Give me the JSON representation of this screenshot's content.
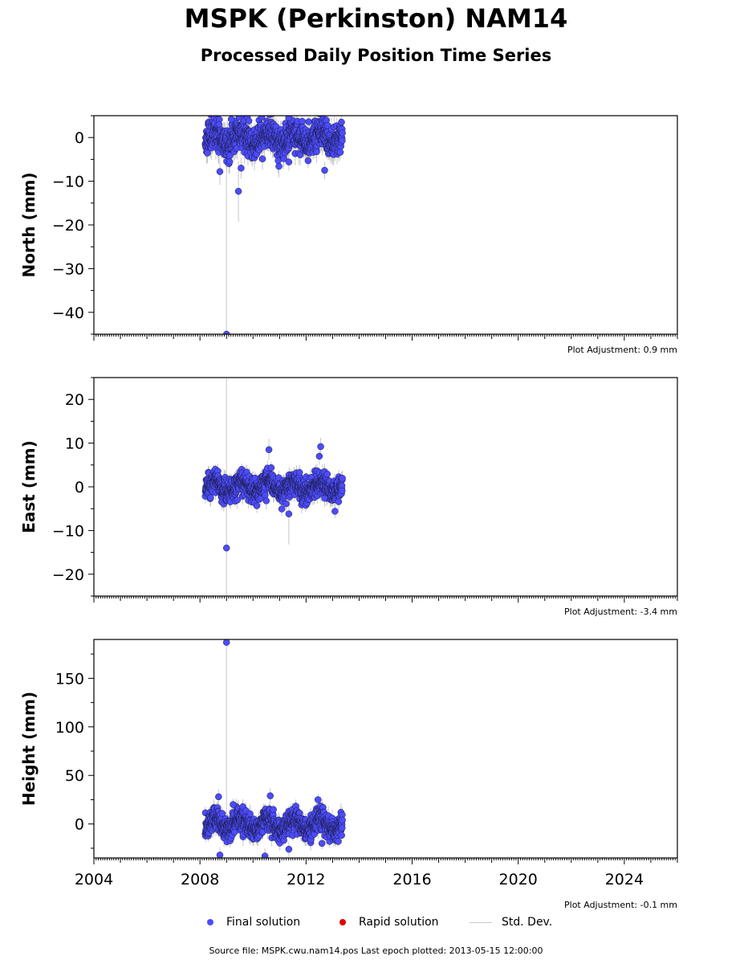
{
  "title": "MSPK (Perkinston) NAM14",
  "subtitle": "Processed Daily Position Time Series",
  "legend": {
    "final_label": "Final solution",
    "rapid_label": "Rapid solution",
    "stddev_label": "Std. Dev.",
    "final_color": "#4c4cff",
    "rapid_color": "#e00000",
    "stddev_color": "#c8c8c8"
  },
  "footer": "Source file: MSPK.cwu.nam14.pos  Last epoch plotted: 2013-05-15 12:00:00",
  "chart_data": [
    {
      "type": "scatter",
      "component": "north",
      "ylabel": "North (mm)",
      "adjustment": "Plot Adjustment: 0.9 mm",
      "xlim": [
        2004.0,
        2026.0
      ],
      "ylim": [
        -45,
        5
      ],
      "yticks": [
        0,
        -10,
        -20,
        -30,
        -40
      ],
      "xticks": [
        2004,
        2008,
        2012,
        2016,
        2020,
        2024
      ],
      "show_xtick_labels": false,
      "data_range": [
        2008.2,
        2013.37
      ],
      "noise_sd": 1.8,
      "seasonal_amp": 1.5,
      "seed": 11,
      "outliers": [
        {
          "x": 2009.0,
          "y": -45.0,
          "err": 44.0
        },
        {
          "x": 2009.45,
          "y": -12.3,
          "err": 7.0
        },
        {
          "x": 2008.75,
          "y": -7.8,
          "err": 3.0
        },
        {
          "x": 2009.55,
          "y": -7.0,
          "err": 2.5
        },
        {
          "x": 2008.72,
          "y": 3.0,
          "err": 2.0
        },
        {
          "x": 2009.18,
          "y": 4.2,
          "err": 2.0
        },
        {
          "x": 2011.35,
          "y": -5.6,
          "err": 2.0
        },
        {
          "x": 2011.35,
          "y": 4.5,
          "err": 2.0
        },
        {
          "x": 2012.7,
          "y": -7.5,
          "err": 2.0
        }
      ]
    },
    {
      "type": "scatter",
      "component": "east",
      "ylabel": "East (mm)",
      "adjustment": "Plot Adjustment: -3.4 mm",
      "xlim": [
        2004.0,
        2026.0
      ],
      "ylim": [
        -25,
        25
      ],
      "yticks": [
        20,
        10,
        0,
        -10,
        -20
      ],
      "xticks": [
        2004,
        2008,
        2012,
        2016,
        2020,
        2024
      ],
      "show_xtick_labels": false,
      "data_range": [
        2008.2,
        2013.37
      ],
      "noise_sd": 1.3,
      "seasonal_amp": 1.2,
      "seed": 23,
      "outliers": [
        {
          "x": 2009.0,
          "y": -14.0,
          "err": 40.0
        },
        {
          "x": 2011.35,
          "y": -6.2,
          "err": 7.0
        },
        {
          "x": 2010.6,
          "y": 8.5,
          "err": 2.5
        },
        {
          "x": 2012.55,
          "y": 9.2,
          "err": 2.0
        },
        {
          "x": 2012.5,
          "y": 7.0,
          "err": 2.0
        },
        {
          "x": 2012.7,
          "y": -2.6,
          "err": 2.0
        },
        {
          "x": 2010.5,
          "y": -3.2,
          "err": 2.0
        }
      ]
    },
    {
      "type": "scatter",
      "component": "height",
      "ylabel": "Height (mm)",
      "adjustment": "Plot Adjustment: -0.1 mm",
      "xlim": [
        2004.0,
        2026.0
      ],
      "ylim": [
        -35,
        190
      ],
      "yticks": [
        150,
        100,
        50,
        0
      ],
      "xticks": [
        2004,
        2008,
        2012,
        2016,
        2020,
        2024
      ],
      "xtick_labels": [
        "2004",
        "2008",
        "2012",
        "2016",
        "2020",
        "2024"
      ],
      "show_xtick_labels": true,
      "data_range": [
        2008.2,
        2013.37
      ],
      "noise_sd": 6.0,
      "seasonal_amp": 6.0,
      "seed": 37,
      "outliers": [
        {
          "x": 2009.0,
          "y": 187.0,
          "err": 190.0
        },
        {
          "x": 2008.7,
          "y": 28.0,
          "err": 8.0
        },
        {
          "x": 2010.65,
          "y": 29.0,
          "err": 8.0
        },
        {
          "x": 2009.25,
          "y": 20.0,
          "err": 6.0
        },
        {
          "x": 2012.45,
          "y": 25.0,
          "err": 6.0
        },
        {
          "x": 2008.75,
          "y": -32.0,
          "err": 8.0
        },
        {
          "x": 2010.45,
          "y": -33.0,
          "err": 8.0
        },
        {
          "x": 2011.35,
          "y": -26.0,
          "err": 8.0
        },
        {
          "x": 2012.6,
          "y": -20.0,
          "err": 6.0
        }
      ]
    }
  ]
}
